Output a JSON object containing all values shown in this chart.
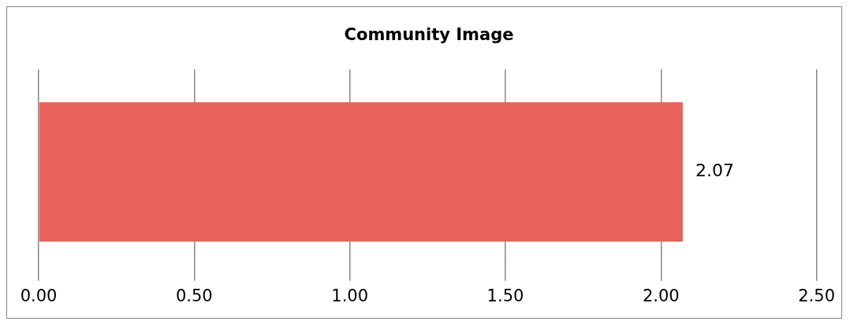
{
  "chart_data": {
    "type": "bar",
    "orientation": "horizontal",
    "title": "Community Image",
    "categories": [
      null
    ],
    "values": [
      2.07
    ],
    "color": "#e8625a",
    "data_labels": true,
    "xlim": [
      0,
      2.5
    ],
    "xticks": [
      {
        "value": 0,
        "label": "0.00"
      },
      {
        "value": 0.5,
        "label": "0.50"
      },
      {
        "value": 1,
        "label": "1.00"
      },
      {
        "value": 1.5,
        "label": "1.50"
      },
      {
        "value": 2,
        "label": "2.00"
      },
      {
        "value": 2.5,
        "label": "2.50"
      }
    ],
    "grid": "x",
    "legend": false
  }
}
